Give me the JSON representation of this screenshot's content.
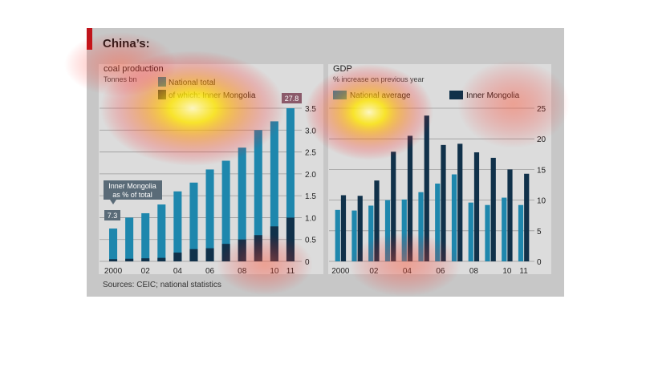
{
  "title": "China’s:",
  "source": "Sources: CEIC; national statistics",
  "colors": {
    "teal": "#1e87ad",
    "navy": "#10314a",
    "panel": "#dcdcdc",
    "background": "#c7c7c7",
    "accent_red": "#c0141b",
    "label_box": "#5a6b78"
  },
  "chart_data": [
    {
      "type": "bar",
      "title": "coal production",
      "subtitle": "Tonnes bn",
      "x": [
        "2000",
        "2001",
        "2002",
        "2003",
        "2004",
        "2005",
        "2006",
        "2007",
        "2008",
        "2009",
        "2010",
        "2011"
      ],
      "x_tick_labels": [
        "2000",
        "02",
        "04",
        "06",
        "08",
        "10",
        "11"
      ],
      "series": [
        {
          "name": "National total",
          "values": [
            0.75,
            1.0,
            1.1,
            1.3,
            1.6,
            1.8,
            2.1,
            2.3,
            2.6,
            3.0,
            3.2,
            3.5
          ]
        },
        {
          "name": "of which: Inner Mongolia",
          "values": [
            0.05,
            0.06,
            0.07,
            0.08,
            0.2,
            0.28,
            0.3,
            0.4,
            0.5,
            0.6,
            0.8,
            1.0
          ]
        }
      ],
      "ylim": [
        0,
        3.5
      ],
      "y_ticks": [
        "0",
        "0.5",
        "1.0",
        "1.5",
        "2.0",
        "2.5",
        "3.0",
        "3.5"
      ],
      "annotations": {
        "share_label": "Inner Mongolia\nas % of total",
        "first": "7.3",
        "last": "27.8"
      },
      "grid": true,
      "legend": "top"
    },
    {
      "type": "bar",
      "title": "GDP",
      "subtitle": "% increase on previous year",
      "x": [
        "2000",
        "2001",
        "2002",
        "2003",
        "2004",
        "2005",
        "2006",
        "2007",
        "2008",
        "2009",
        "2010",
        "2011"
      ],
      "x_tick_labels": [
        "2000",
        "02",
        "04",
        "06",
        "08",
        "10",
        "11"
      ],
      "series": [
        {
          "name": "National average",
          "values": [
            8.4,
            8.3,
            9.1,
            10.0,
            10.1,
            11.3,
            12.7,
            14.2,
            9.6,
            9.2,
            10.4,
            9.2
          ]
        },
        {
          "name": "Inner Mongolia",
          "values": [
            10.8,
            10.7,
            13.2,
            17.9,
            20.5,
            23.8,
            19.0,
            19.2,
            17.8,
            16.9,
            15.0,
            14.3
          ]
        }
      ],
      "ylim": [
        0,
        25
      ],
      "y_ticks": [
        "0",
        "5",
        "10",
        "15",
        "20",
        "25"
      ],
      "grid": true,
      "legend": "top"
    }
  ]
}
